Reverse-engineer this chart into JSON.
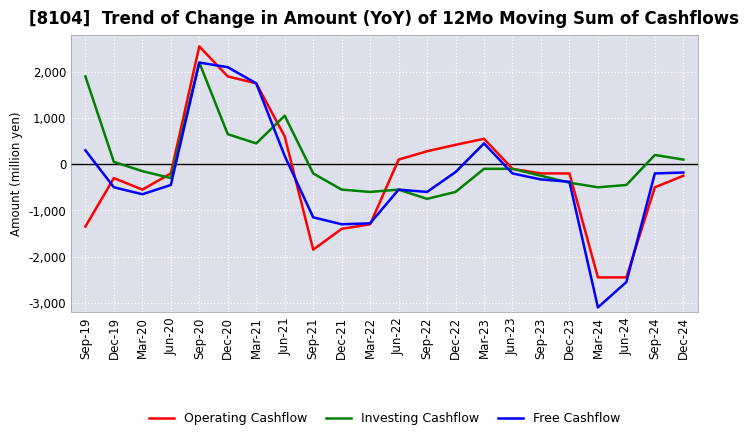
{
  "title": "[8104]  Trend of Change in Amount (YoY) of 12Mo Moving Sum of Cashflows",
  "ylabel": "Amount (million yen)",
  "x_labels": [
    "Sep-19",
    "Dec-19",
    "Mar-20",
    "Jun-20",
    "Sep-20",
    "Dec-20",
    "Mar-21",
    "Jun-21",
    "Sep-21",
    "Dec-21",
    "Mar-22",
    "Jun-22",
    "Sep-22",
    "Dec-22",
    "Mar-23",
    "Jun-23",
    "Sep-23",
    "Dec-23",
    "Mar-24",
    "Jun-24",
    "Sep-24",
    "Dec-24"
  ],
  "operating": [
    -1350,
    -300,
    -550,
    -200,
    2550,
    1900,
    1750,
    600,
    -1850,
    -1400,
    -1300,
    100,
    280,
    420,
    550,
    -100,
    -200,
    -200,
    -2450,
    -2450,
    -500,
    -250
  ],
  "investing": [
    1900,
    50,
    -150,
    -300,
    2200,
    650,
    450,
    1050,
    -200,
    -550,
    -600,
    -550,
    -750,
    -600,
    -100,
    -100,
    -250,
    -400,
    -500,
    -450,
    200,
    100
  ],
  "free": [
    300,
    -500,
    -650,
    -450,
    2200,
    2100,
    1750,
    180,
    -1150,
    -1300,
    -1280,
    -550,
    -600,
    -170,
    450,
    -200,
    -330,
    -380,
    -3100,
    -2550,
    -200,
    -180
  ],
  "ylim": [
    -3200,
    2800
  ],
  "yticks": [
    -3000,
    -2000,
    -1000,
    0,
    1000,
    2000
  ],
  "operating_color": "#ff0000",
  "investing_color": "#008000",
  "free_color": "#0000ff",
  "bg_color": "#ffffff",
  "plot_bg_color": "#dde0ea",
  "grid_color": "#ffffff",
  "title_fontsize": 12,
  "axis_fontsize": 8.5,
  "legend_fontsize": 9
}
